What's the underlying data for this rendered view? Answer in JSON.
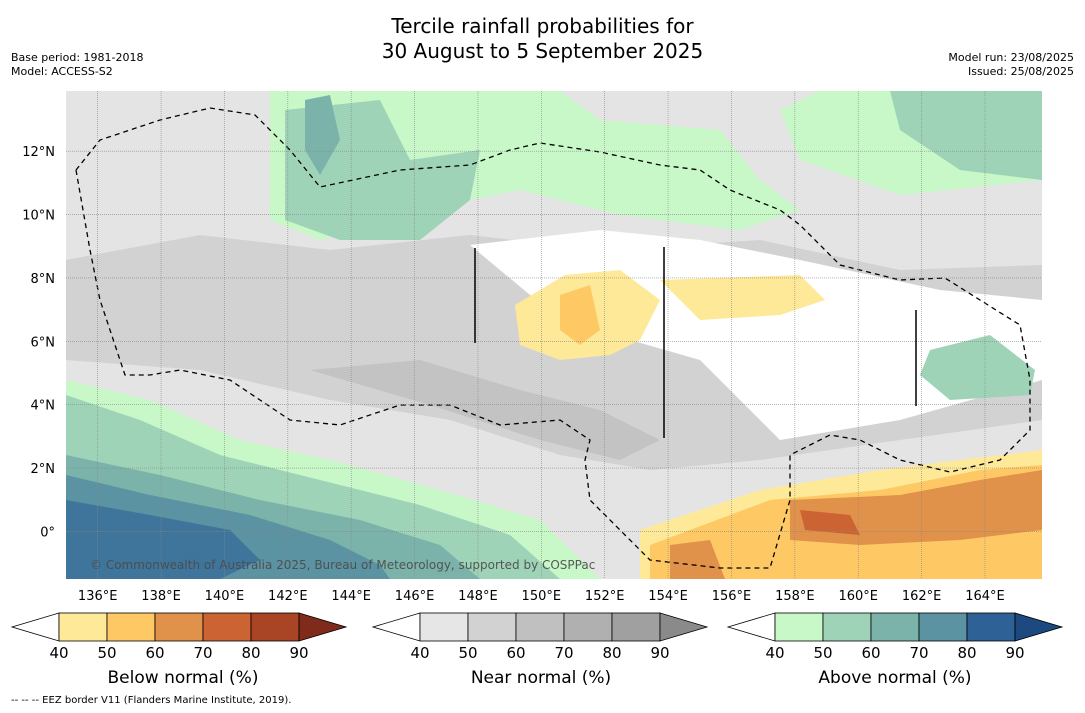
{
  "title_line1": "Tercile rainfall probabilities for",
  "title_line2": "30 August to 5 September 2025",
  "base_period": "Base period: 1981-2018",
  "model": "Model: ACCESS-S2",
  "model_run": "Model run: 23/08/2025",
  "issued": "Issued: 25/08/2025",
  "copyright": "© Commonwealth of Australia 2025, Bureau of Meteorology, supported by COSPPac",
  "footer": "--  --  -- EEZ border V11 (Flanders Marine Institute, 2019).",
  "lon_labels": [
    "136°E",
    "138°E",
    "140°E",
    "142°E",
    "144°E",
    "146°E",
    "148°E",
    "150°E",
    "152°E",
    "154°E",
    "156°E",
    "158°E",
    "160°E",
    "162°E",
    "164°E"
  ],
  "lat_labels": [
    "12°N",
    "10°N",
    "8°N",
    "6°N",
    "4°N",
    "2°N",
    "0°"
  ],
  "lon_values": [
    136,
    138,
    140,
    142,
    144,
    146,
    148,
    150,
    152,
    154,
    156,
    158,
    160,
    162,
    164
  ],
  "lat_values": [
    12,
    10,
    8,
    6,
    4,
    2,
    0
  ],
  "extent": {
    "lon_min": 135.0,
    "lon_max": 165.8,
    "lat_min": -1.5,
    "lat_max": 13.9
  },
  "colorbars": [
    {
      "label": "Below normal (%)",
      "ticks": [
        "40",
        "50",
        "60",
        "70",
        "80",
        "90"
      ],
      "colors": [
        "#ffffff",
        "#fee999",
        "#fec965",
        "#e0914a",
        "#cc6333",
        "#a94425",
        "#7f2a1a"
      ]
    },
    {
      "label": "Near normal (%)",
      "ticks": [
        "40",
        "50",
        "60",
        "70",
        "80",
        "90"
      ],
      "colors": [
        "#ffffff",
        "#e6e6e6",
        "#d2d2d2",
        "#c0c0c0",
        "#b0b0b0",
        "#a0a0a0",
        "#8a8a8a"
      ]
    },
    {
      "label": "Above normal (%)",
      "ticks": [
        "40",
        "50",
        "60",
        "70",
        "80",
        "90"
      ],
      "colors": [
        "#ffffff",
        "#c8f8c8",
        "#9ed3b8",
        "#7bb3aa",
        "#5b93a3",
        "#2e6196",
        "#1c4a80"
      ]
    }
  ]
}
